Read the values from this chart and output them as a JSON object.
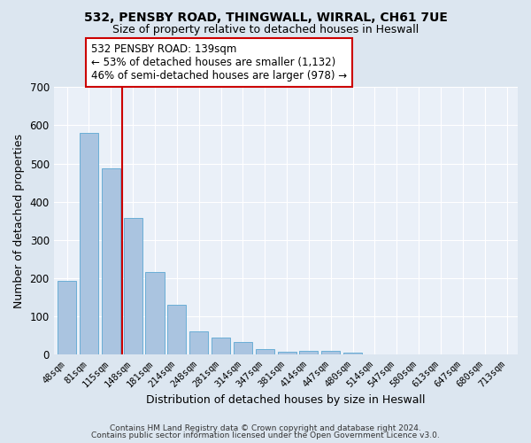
{
  "title": "532, PENSBY ROAD, THINGWALL, WIRRAL, CH61 7UE",
  "subtitle": "Size of property relative to detached houses in Heswall",
  "xlabel": "Distribution of detached houses by size in Heswall",
  "ylabel": "Number of detached properties",
  "bar_labels": [
    "48sqm",
    "81sqm",
    "115sqm",
    "148sqm",
    "181sqm",
    "214sqm",
    "248sqm",
    "281sqm",
    "314sqm",
    "347sqm",
    "381sqm",
    "414sqm",
    "447sqm",
    "480sqm",
    "514sqm",
    "547sqm",
    "580sqm",
    "613sqm",
    "647sqm",
    "680sqm",
    "713sqm"
  ],
  "bar_values": [
    193,
    580,
    487,
    358,
    217,
    131,
    62,
    44,
    34,
    16,
    7,
    10,
    11,
    6,
    0,
    0,
    0,
    0,
    0,
    0,
    0
  ],
  "bar_color": "#aac4e0",
  "bar_edgecolor": "#6baed6",
  "ylim": [
    0,
    700
  ],
  "yticks": [
    0,
    100,
    200,
    300,
    400,
    500,
    600,
    700
  ],
  "vline_color": "#cc0000",
  "annotation_title": "532 PENSBY ROAD: 139sqm",
  "annotation_line1": "← 53% of detached houses are smaller (1,132)",
  "annotation_line2": "46% of semi-detached houses are larger (978) →",
  "annotation_box_facecolor": "#ffffff",
  "annotation_box_edgecolor": "#cc0000",
  "bg_color": "#dce6f0",
  "plot_bg_color": "#eaf0f8",
  "grid_color": "#ffffff",
  "footer1": "Contains HM Land Registry data © Crown copyright and database right 2024.",
  "footer2": "Contains public sector information licensed under the Open Government Licence v3.0."
}
